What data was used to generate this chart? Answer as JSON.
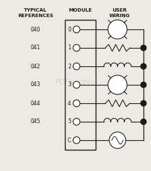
{
  "title_left1": "TYPICAL",
  "title_left2": "REFERENCES",
  "title_mid": "MODULE",
  "title_right1": "USER",
  "title_right2": "WIRING",
  "references": [
    "040",
    "041",
    "042",
    "043",
    "044",
    "045"
  ],
  "terminals": [
    "0",
    "1",
    "2",
    "3",
    "4",
    "5",
    "C"
  ],
  "bg_color": "#edeae4",
  "line_color": "#1a1a1a",
  "text_color": "#1a1a1a",
  "watermark_color": "#c0bab2"
}
